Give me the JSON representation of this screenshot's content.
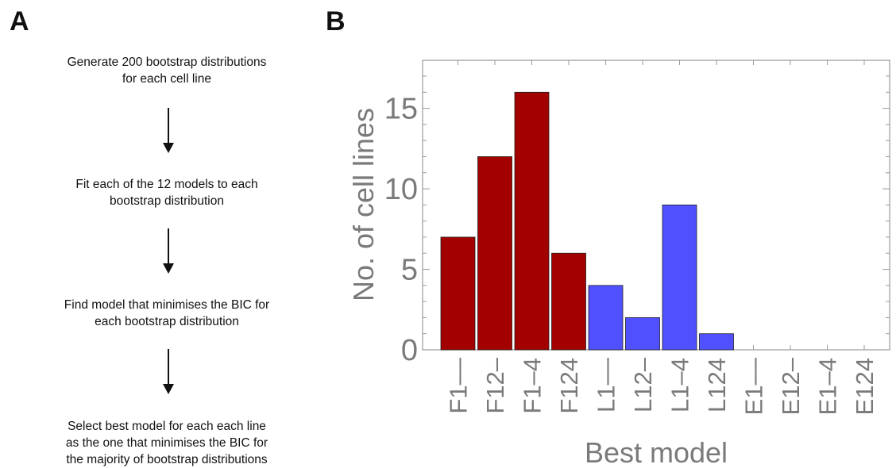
{
  "panels": {
    "a_label": "A",
    "b_label": "B"
  },
  "flowchart": {
    "steps": [
      {
        "line1": "Generate 200 bootstrap distributions",
        "line2": "for each cell line"
      },
      {
        "line1": "Fit each of the 12 models to each",
        "line2": "bootstrap distribution"
      },
      {
        "line1": "Find model that minimises the BIC for",
        "line2": "each bootstrap distribution"
      },
      {
        "line1": "Select best model for each each line",
        "line2": "as the one that minimises the BIC for",
        "line3": "the majority of bootstrap distributions"
      }
    ]
  },
  "chart_data": {
    "type": "bar",
    "title": "",
    "xlabel": "Best model",
    "ylabel": "No. of cell lines",
    "categories": [
      "F1––",
      "F12–",
      "F1–4",
      "F124",
      "L1––",
      "L12–",
      "L1–4",
      "L124",
      "E1––",
      "E12–",
      "E1–4",
      "E124"
    ],
    "values": [
      7,
      12,
      16,
      6,
      4,
      2,
      9,
      1,
      0,
      0,
      0,
      0
    ],
    "bar_colors": [
      "#a30000",
      "#a30000",
      "#a30000",
      "#a30000",
      "#5050ff",
      "#5050ff",
      "#5050ff",
      "#5050ff",
      "#5050ff",
      "#5050ff",
      "#5050ff",
      "#5050ff"
    ],
    "ylim": [
      0,
      18
    ],
    "yticks": [
      0,
      5,
      10,
      15
    ],
    "grid": false,
    "legend": "none"
  }
}
